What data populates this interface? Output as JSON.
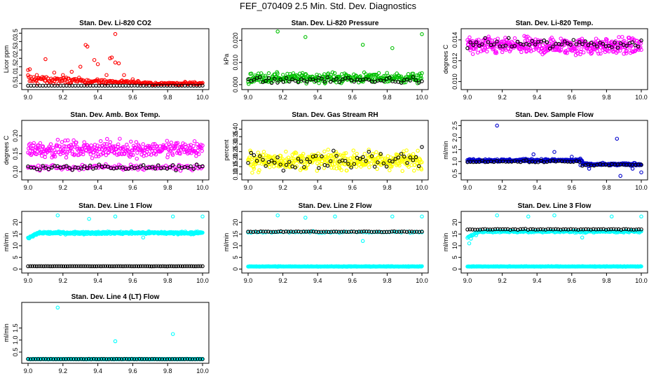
{
  "title": "FEF_070409  2.5 Min. Std. Dev. Diagnostics",
  "colors": {
    "red": "#ff0000",
    "green": "#00c000",
    "magenta": "#ff00ff",
    "yellow": "#ffff00",
    "blue": "#0000cc",
    "cyan": "#00ffff",
    "black": "#000000"
  },
  "chart_data": [
    {
      "type": "scatter",
      "id": "co2",
      "title": "Stan. Dev. Li-820 CO2",
      "ylabel": "Licor ppm",
      "xlim": [
        9.0,
        10.0
      ],
      "xticks": [
        "9.0",
        "9.2",
        "9.4",
        "9.6",
        "9.8",
        "10.0"
      ],
      "ylim": [
        0.3,
        3.6
      ],
      "yticks": [
        [
          "0.5",
          0.5
        ],
        [
          "1.0",
          1.0
        ],
        [
          "1.5",
          1.5
        ],
        [
          "2.0",
          2.0
        ],
        [
          "2.5",
          2.5
        ],
        [
          "3.0",
          3.0
        ],
        [
          "3.5",
          3.5
        ]
      ],
      "series": [
        {
          "name": "primary",
          "color": "red",
          "base": 0.5,
          "spread": 0.12,
          "decay": [
            0.45,
            9.7,
            0.05
          ],
          "n": 220,
          "spikes": [
            [
              9.0,
              1.3
            ],
            [
              9.01,
              1.35
            ],
            [
              9.1,
              1.95
            ],
            [
              9.2,
              1.0
            ],
            [
              9.25,
              1.2
            ],
            [
              9.3,
              1.5
            ],
            [
              9.33,
              2.8
            ],
            [
              9.34,
              2.7
            ],
            [
              9.38,
              1.9
            ],
            [
              9.4,
              1.65
            ],
            [
              9.45,
              1.0
            ],
            [
              9.47,
              2.0
            ],
            [
              9.48,
              2.05
            ],
            [
              9.5,
              1.75
            ],
            [
              9.5,
              3.45
            ],
            [
              9.52,
              1.7
            ],
            [
              9.55,
              1.0
            ],
            [
              9.15,
              1.15
            ],
            [
              9.05,
              1.0
            ],
            [
              9.6,
              0.75
            ]
          ]
        },
        {
          "name": "black",
          "color": "black",
          "base": 0.35,
          "spread": 0.03,
          "n": 60
        }
      ]
    },
    {
      "type": "scatter",
      "id": "pressure",
      "title": "Stan. Dev. Li-820 Pressure",
      "ylabel": "kPa",
      "xlim": [
        9.0,
        10.0
      ],
      "xticks": [
        "9.0",
        "9.2",
        "9.4",
        "9.6",
        "9.8",
        "10.0"
      ],
      "ylim": [
        -0.001,
        0.024
      ],
      "yticks": [
        [
          "0.000",
          0.0
        ],
        [
          "0.010",
          0.01
        ],
        [
          "0.020",
          0.02
        ]
      ],
      "series": [
        {
          "name": "primary",
          "color": "green",
          "base": 0.003,
          "spread": 0.0033,
          "n": 320,
          "spikes": [
            [
              9.17,
              0.024
            ],
            [
              9.33,
              0.0215
            ],
            [
              9.66,
              0.018
            ],
            [
              9.83,
              0.0165
            ],
            [
              10.0,
              0.0228
            ]
          ]
        },
        {
          "name": "black",
          "color": "black",
          "base": 0.002,
          "spread": 0.002,
          "n": 60
        }
      ]
    },
    {
      "type": "scatter",
      "id": "temp",
      "title": "Stan. Dev. Li-820 Temp.",
      "ylabel": "degrees C",
      "xlim": [
        9.0,
        10.0
      ],
      "xticks": [
        "9.0",
        "9.2",
        "9.4",
        "9.6",
        "9.8",
        "10.0"
      ],
      "ylim": [
        0.0095,
        0.0148
      ],
      "yticks": [
        [
          "0.010",
          0.01
        ],
        [
          "0.012",
          0.012
        ],
        [
          "0.014",
          0.014
        ]
      ],
      "series": [
        {
          "name": "primary",
          "color": "magenta",
          "base": 0.0134,
          "spread": 0.0012,
          "n": 420
        },
        {
          "name": "black",
          "color": "black",
          "base": 0.0136,
          "spread": 0.0007,
          "n": 60
        }
      ]
    },
    {
      "type": "scatter",
      "id": "boxtemp",
      "title": "Stan. Dev. Amb. Box Temp.",
      "ylabel": "degrees C",
      "xlim": [
        9.0,
        10.0
      ],
      "xticks": [
        "9.0",
        "9.2",
        "9.4",
        "9.6",
        "9.8",
        "10.0"
      ],
      "ylim": [
        0.085,
        0.235
      ],
      "yticks": [
        [
          "0.10",
          0.1
        ],
        [
          "0.15",
          0.15
        ],
        [
          "0.20",
          0.2
        ]
      ],
      "series": [
        {
          "name": "primary",
          "color": "magenta",
          "base": 0.163,
          "spread": 0.032,
          "n": 330
        },
        {
          "name": "primary_low",
          "color": "magenta",
          "base": 0.112,
          "spread": 0.012,
          "n": 120
        },
        {
          "name": "black",
          "color": "black",
          "base": 0.112,
          "spread": 0.01,
          "n": 60
        }
      ]
    },
    {
      "type": "scatter",
      "id": "rh",
      "title": "Stan. Dev. Gas Stream RH",
      "ylabel": "percent",
      "xlim": [
        9.0,
        10.0
      ],
      "xticks": [
        "9.0",
        "9.2",
        "9.4",
        "9.6",
        "9.8",
        "10.0"
      ],
      "ylim": [
        0.08,
        0.44
      ],
      "yticks": [
        [
          "0.10",
          0.1
        ],
        [
          "0.15",
          0.15
        ],
        [
          "0.20",
          0.2
        ],
        [
          "0.25",
          0.25
        ],
        [
          "0.30",
          0.3
        ],
        [
          "0.35",
          0.35
        ],
        [
          "0.40",
          0.4
        ]
      ],
      "series": [
        {
          "name": "primary",
          "color": "yellow",
          "base": 0.19,
          "spread": 0.09,
          "n": 420
        },
        {
          "name": "black",
          "color": "black",
          "base": 0.2,
          "spread": 0.09,
          "n": 60
        }
      ]
    },
    {
      "type": "scatter",
      "id": "sampleflow",
      "title": "Stan. Dev. Sample Flow",
      "ylabel": "ml/min",
      "xlim": [
        9.0,
        10.0
      ],
      "xticks": [
        "9.0",
        "9.2",
        "9.4",
        "9.6",
        "9.8",
        "10.0"
      ],
      "ylim": [
        0.35,
        2.6
      ],
      "yticks": [
        [
          "0.5",
          0.5
        ],
        [
          "1.0",
          1.0
        ],
        [
          "1.5",
          1.5
        ],
        [
          "2.0",
          2.0
        ],
        [
          "2.5",
          2.5
        ]
      ],
      "series": [
        {
          "name": "primary",
          "color": "blue",
          "base": 1.05,
          "spread": 0.08,
          "step": [
            9.66,
            0.88
          ],
          "n": 380,
          "spikes": [
            [
              9.17,
              2.5
            ],
            [
              9.38,
              1.3
            ],
            [
              9.5,
              1.4
            ],
            [
              9.6,
              1.2
            ],
            [
              9.65,
              0.85
            ],
            [
              9.7,
              0.7
            ],
            [
              9.86,
              1.95
            ],
            [
              9.88,
              0.4
            ],
            [
              9.95,
              0.7
            ],
            [
              10.0,
              0.55
            ]
          ]
        },
        {
          "name": "black",
          "color": "black",
          "base": 1.0,
          "spread": 0.06,
          "step": [
            9.66,
            0.86
          ],
          "n": 60
        }
      ]
    },
    {
      "type": "scatter",
      "id": "line1",
      "title": "Stan. Dev. Line 1 Flow",
      "ylabel": "ml/min",
      "xlim": [
        9.0,
        10.0
      ],
      "xticks": [
        "9.0",
        "9.2",
        "9.4",
        "9.6",
        "9.8",
        "10.0"
      ],
      "ylim": [
        -0.5,
        23.5
      ],
      "yticks": [
        [
          "0",
          0
        ],
        [
          "5",
          5
        ],
        [
          "10",
          10
        ],
        [
          "15",
          15
        ],
        [
          "20",
          20
        ]
      ],
      "series": [
        {
          "name": "primary",
          "color": "cyan",
          "base": 15.5,
          "spread": 0.8,
          "ramp": true,
          "n": 420,
          "spikes": [
            [
              9.17,
              23
            ],
            [
              9.35,
              21.5
            ],
            [
              9.5,
              22.5
            ],
            [
              9.66,
              13.5
            ],
            [
              9.83,
              22.5
            ],
            [
              10.0,
              22.5
            ]
          ]
        },
        {
          "name": "black",
          "color": "black",
          "base": 1.2,
          "spread": 0.05,
          "n": 80
        }
      ]
    },
    {
      "type": "scatter",
      "id": "line2",
      "title": "Stan. Dev. Line 2 Flow",
      "ylabel": "ml/min",
      "xlim": [
        9.0,
        10.0
      ],
      "xticks": [
        "9.0",
        "9.2",
        "9.4",
        "9.6",
        "9.8",
        "10.0"
      ],
      "ylim": [
        -0.5,
        23.5
      ],
      "yticks": [
        [
          "0",
          0
        ],
        [
          "5",
          5
        ],
        [
          "10",
          10
        ],
        [
          "15",
          15
        ],
        [
          "20",
          20
        ]
      ],
      "series": [
        {
          "name": "primary",
          "color": "cyan",
          "base": 1.1,
          "spread": 0.15,
          "n": 420,
          "spikes": [
            [
              9.17,
              23
            ],
            [
              9.33,
              22
            ],
            [
              9.5,
              22.5
            ],
            [
              9.66,
              12
            ],
            [
              9.83,
              22.5
            ],
            [
              10.0,
              22.5
            ]
          ]
        },
        {
          "name": "primary_high",
          "color": "cyan",
          "base": 15.8,
          "spread": 0.5,
          "n": 60
        },
        {
          "name": "black",
          "color": "black",
          "base": 16.0,
          "spread": 0.25,
          "n": 70
        }
      ]
    },
    {
      "type": "scatter",
      "id": "line3",
      "title": "Stan. Dev. Line 3 Flow",
      "ylabel": "ml/min",
      "xlim": [
        9.0,
        10.0
      ],
      "xticks": [
        "9.0",
        "9.2",
        "9.4",
        "9.6",
        "9.8",
        "10.0"
      ],
      "ylim": [
        -0.5,
        23.5
      ],
      "yticks": [
        [
          "0",
          0
        ],
        [
          "5",
          5
        ],
        [
          "10",
          10
        ],
        [
          "15",
          15
        ],
        [
          "20",
          20
        ]
      ],
      "series": [
        {
          "name": "primary",
          "color": "cyan",
          "base": 1.1,
          "spread": 0.15,
          "n": 420,
          "spikes": [
            [
              9.01,
              11
            ],
            [
              9.02,
              13
            ],
            [
              9.05,
              14.5
            ],
            [
              9.17,
              23
            ],
            [
              9.35,
              22.5
            ],
            [
              9.5,
              23
            ],
            [
              9.66,
              13.5
            ],
            [
              9.83,
              22.5
            ],
            [
              10.0,
              22.5
            ]
          ]
        },
        {
          "name": "primary_high",
          "color": "cyan",
          "base": 16.0,
          "spread": 0.6,
          "ramp": true,
          "n": 200
        },
        {
          "name": "black",
          "color": "black",
          "base": 17.0,
          "spread": 0.25,
          "n": 70
        }
      ]
    },
    {
      "type": "scatter",
      "id": "line4",
      "title": "Stan. Dev. Line 4 (LT) Flow",
      "ylabel": "ml/min",
      "xlim": [
        9.0,
        10.0
      ],
      "xticks": [
        "9.0",
        "9.2",
        "9.4",
        "9.6",
        "9.8",
        "10.0"
      ],
      "ylim": [
        0.15,
        2.45
      ],
      "yticks": [
        [
          "0.5",
          0.5
        ],
        [
          "1.0",
          1.0
        ],
        [
          "1.5",
          1.5
        ]
      ],
      "series": [
        {
          "name": "primary",
          "color": "cyan",
          "base": 0.21,
          "spread": 0.015,
          "n": 420,
          "spikes": [
            [
              9.17,
              2.35
            ],
            [
              9.5,
              0.95
            ],
            [
              9.83,
              1.25
            ],
            [
              9.67,
              0.22
            ]
          ]
        },
        {
          "name": "black",
          "color": "black",
          "base": 0.21,
          "spread": 0.01,
          "n": 70
        }
      ]
    }
  ]
}
